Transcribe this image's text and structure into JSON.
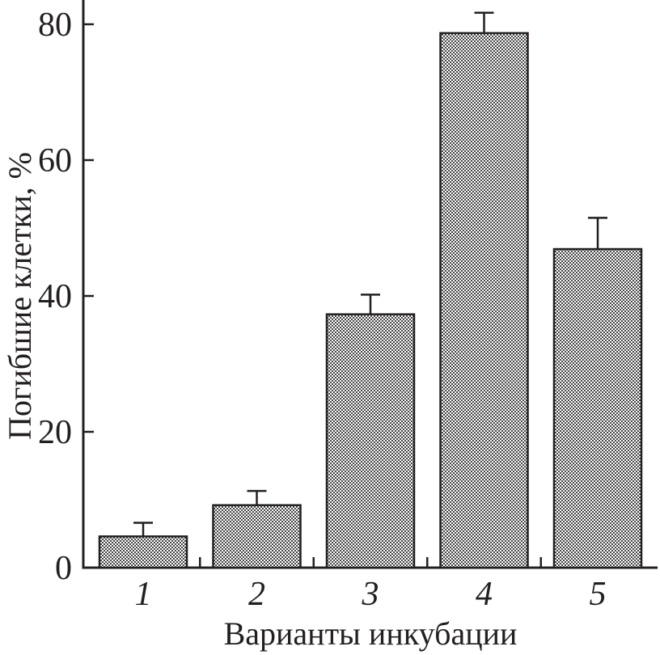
{
  "chart_data": {
    "type": "bar",
    "title": "",
    "xlabel": "Варианты инкубации",
    "ylabel": "Погибшие клетки, %",
    "categories": [
      "1",
      "2",
      "3",
      "4",
      "5"
    ],
    "values": [
      4.6,
      9.2,
      37.3,
      78.7,
      46.9
    ],
    "error_upper": [
      6.6,
      11.3,
      40.2,
      81.7,
      51.5
    ],
    "ylim": [
      0,
      84
    ],
    "yticks": [
      0,
      20,
      40,
      60,
      80
    ],
    "grid": false,
    "bar_fill": "crosshatch pattern",
    "colors": {
      "ink": "#231f20",
      "hatch": "#8a8a8a"
    }
  }
}
